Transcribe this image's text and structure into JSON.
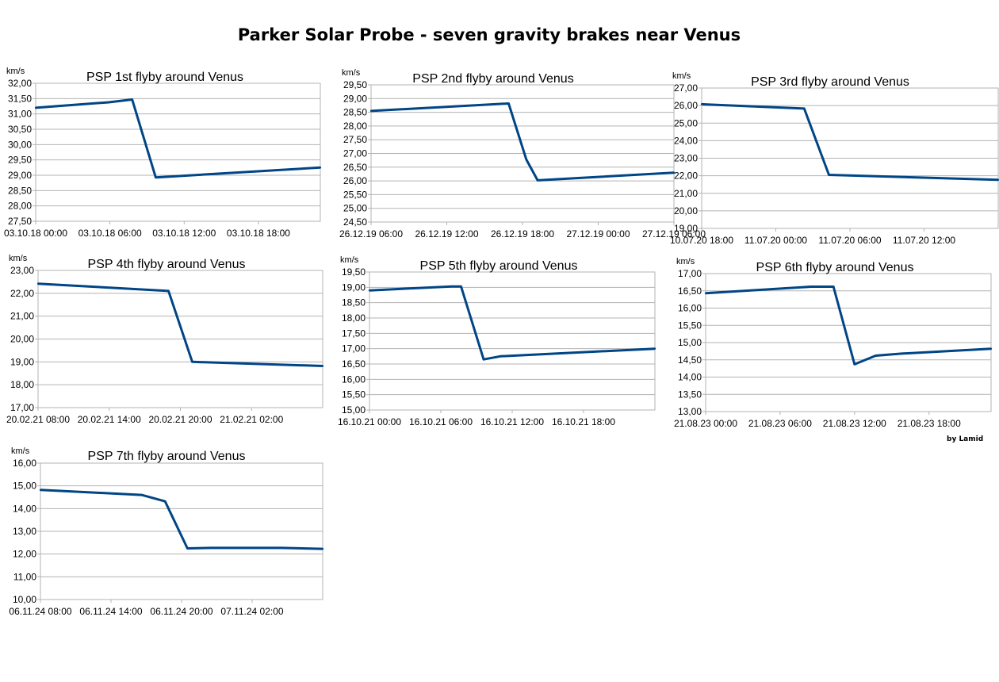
{
  "title": "Parker Solar Probe - seven gravity brakes near Venus",
  "credit": "by Lamid",
  "line_color": "#004586",
  "chart_data": [
    {
      "type": "line",
      "title": "PSP 1st flyby around Venus",
      "ylabel": "km/s",
      "ylim": [
        27.5,
        32.0
      ],
      "yticks": [
        "27,50",
        "28,00",
        "28,50",
        "29,00",
        "29,50",
        "30,00",
        "30,50",
        "31,00",
        "31,50",
        "32,00"
      ],
      "xlim": [
        0,
        23
      ],
      "xticks": [
        {
          "x": 0,
          "label": "03.10.18 00:00"
        },
        {
          "x": 6,
          "label": "03.10.18 06:00"
        },
        {
          "x": 12,
          "label": "03.10.18 12:00"
        },
        {
          "x": 18,
          "label": "03.10.18 18:00"
        }
      ],
      "x": [
        0,
        5.9,
        7.8,
        9.7,
        23
      ],
      "y": [
        31.2,
        31.38,
        31.47,
        28.93,
        29.25
      ]
    },
    {
      "type": "line",
      "title": "PSP 2nd flyby around Venus",
      "ylabel": "km/s",
      "ylim": [
        24.5,
        29.5
      ],
      "yticks": [
        "24,50",
        "25,00",
        "25,50",
        "26,00",
        "26,50",
        "27,00",
        "27,50",
        "28,00",
        "28,50",
        "29,00",
        "29,50"
      ],
      "xlim": [
        0,
        24
      ],
      "xticks": [
        {
          "x": 0,
          "label": "26.12.19 06:00"
        },
        {
          "x": 6,
          "label": "26.12.19 12:00"
        },
        {
          "x": 12,
          "label": "26.12.19 18:00"
        },
        {
          "x": 18,
          "label": "27.12.19 00:00"
        },
        {
          "x": 24,
          "label": "27.12.19 06:00"
        }
      ],
      "x": [
        0,
        10.9,
        12.3,
        13.2,
        24
      ],
      "y": [
        28.55,
        28.82,
        26.78,
        26.02,
        26.3
      ]
    },
    {
      "type": "line",
      "title": "PSP 3rd flyby around Venus",
      "ylabel": "km/s",
      "ylim": [
        19.0,
        27.0
      ],
      "yticks": [
        "19,00",
        "20,00",
        "21,00",
        "22,00",
        "23,00",
        "24,00",
        "25,00",
        "26,00",
        "27,00"
      ],
      "xlim": [
        0,
        24
      ],
      "xticks": [
        {
          "x": 0,
          "label": "10.07.20 18:00"
        },
        {
          "x": 6,
          "label": "11.07.20 00:00"
        },
        {
          "x": 12,
          "label": "11.07.20 06:00"
        },
        {
          "x": 18,
          "label": "11.07.20 12:00"
        }
      ],
      "x": [
        0,
        8.3,
        10.3,
        24
      ],
      "y": [
        26.08,
        25.83,
        22.05,
        21.77
      ]
    },
    {
      "type": "line",
      "title": "PSP 4th flyby around Venus",
      "ylabel": "km/s",
      "ylim": [
        17.0,
        23.0
      ],
      "yticks": [
        "17,00",
        "18,00",
        "19,00",
        "20,00",
        "21,00",
        "22,00",
        "23,00"
      ],
      "xlim": [
        0,
        24
      ],
      "xticks": [
        {
          "x": 0,
          "label": "20.02.21 08:00"
        },
        {
          "x": 6,
          "label": "20.02.21 14:00"
        },
        {
          "x": 12,
          "label": "20.02.21 20:00"
        },
        {
          "x": 18,
          "label": "21.02.21 02:00"
        }
      ],
      "x": [
        0,
        11.0,
        13.0,
        24
      ],
      "y": [
        22.42,
        22.1,
        19.0,
        18.82
      ]
    },
    {
      "type": "line",
      "title": "PSP 5th flyby around Venus",
      "ylabel": "km/s",
      "ylim": [
        15.0,
        19.5
      ],
      "yticks": [
        "15,00",
        "15,50",
        "16,00",
        "16,50",
        "17,00",
        "17,50",
        "18,00",
        "18,50",
        "19,00",
        "19,50"
      ],
      "xlim": [
        0,
        24
      ],
      "xticks": [
        {
          "x": 0,
          "label": "16.10.21 00:00"
        },
        {
          "x": 6,
          "label": "16.10.21 06:00"
        },
        {
          "x": 12,
          "label": "16.10.21 12:00"
        },
        {
          "x": 18,
          "label": "16.10.21 18:00"
        }
      ],
      "x": [
        0,
        6.9,
        7.7,
        9.6,
        11.0,
        24
      ],
      "y": [
        18.9,
        19.03,
        19.03,
        16.65,
        16.75,
        17.0
      ]
    },
    {
      "type": "line",
      "title": "PSP 6th flyby around Venus",
      "ylabel": "km/s",
      "ylim": [
        13.0,
        17.0
      ],
      "yticks": [
        "13,00",
        "13,50",
        "14,00",
        "14,50",
        "15,00",
        "15,50",
        "16,00",
        "16,50",
        "17,00"
      ],
      "xlim": [
        0,
        23
      ],
      "xticks": [
        {
          "x": 0,
          "label": "21.08.23 00:00"
        },
        {
          "x": 6,
          "label": "21.08.23 06:00"
        },
        {
          "x": 12,
          "label": "21.08.23 12:00"
        },
        {
          "x": 18,
          "label": "21.08.23 18:00"
        }
      ],
      "x": [
        0,
        8.5,
        10.3,
        12.0,
        13.7,
        15.8,
        23
      ],
      "y": [
        16.43,
        16.62,
        16.62,
        14.37,
        14.62,
        14.68,
        14.82
      ]
    },
    {
      "type": "line",
      "title": "PSP 7th flyby around Venus",
      "ylabel": "km/s",
      "ylim": [
        10.0,
        16.0
      ],
      "yticks": [
        "10,00",
        "11,00",
        "12,00",
        "13,00",
        "14,00",
        "15,00",
        "16,00"
      ],
      "xlim": [
        0,
        24
      ],
      "xticks": [
        {
          "x": 0,
          "label": "06.11.24 08:00"
        },
        {
          "x": 6,
          "label": "06.11.24 14:00"
        },
        {
          "x": 12,
          "label": "06.11.24 20:00"
        },
        {
          "x": 18,
          "label": "07.11.24 02:00"
        }
      ],
      "x": [
        0,
        8.6,
        10.6,
        12.5,
        14.5,
        20.5,
        24
      ],
      "y": [
        14.82,
        14.6,
        14.32,
        12.25,
        12.27,
        12.27,
        12.23
      ]
    }
  ]
}
